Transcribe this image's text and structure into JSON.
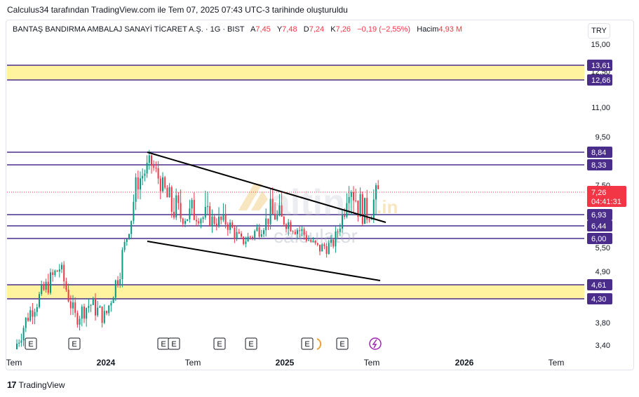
{
  "caption": "Calculus34 tarafından TradingView.com ile Tem 07, 2025 07:43 UTC-3 tarihinde oluşturuldu",
  "legend": {
    "symbol": "BANTAŞ BANDIRMA AMBALAJ SANAYİ TİCARET A.Ş. · 1G · BIST",
    "open_label": "A",
    "open": "7,45",
    "high_label": "Y",
    "high": "7,48",
    "low_label": "D",
    "low": "7,24",
    "close_label": "K",
    "close": "7,26",
    "change": "−0,19 (−2,55%)",
    "volume_label": "Hacim",
    "volume": "4,93 M"
  },
  "currency": "TRY",
  "watermark": {
    "brand": "altin",
    "suffix": ".in",
    "sub": "calculator"
  },
  "footer": {
    "brand": "TradingView"
  },
  "colors": {
    "purple": "#4a2d8a",
    "yellow": "#fff3a0",
    "up": "#089981",
    "down": "#f23645"
  },
  "chart_data": {
    "type": "candlestick",
    "y_ticks": [
      "15,00",
      "12,50",
      "11,00",
      "9,50",
      "7,50",
      "5,50",
      "4,90",
      "3,80",
      "3,40"
    ],
    "x_ticks": [
      "Tem",
      "2024",
      "Tem",
      "2025",
      "Tem",
      "2026",
      "Tem"
    ],
    "price_levels": [
      "13,61",
      "12,66",
      "8,84",
      "8,33",
      "6,93",
      "6,44",
      "6,00",
      "4,61",
      "4,30"
    ],
    "zones": [
      [
        "13,61",
        "12,66"
      ],
      [
        "4,61",
        "4,30"
      ]
    ],
    "current_price": "7,26",
    "countdown": "04:41:31",
    "event_markers": [
      "E",
      "E",
      "E",
      "E",
      "E",
      "E",
      "E",
      "E"
    ],
    "series": [
      {
        "x": "2023-07",
        "y": 3.3
      },
      {
        "x": "2023-08",
        "y": 4.0
      },
      {
        "x": "2023-09",
        "y": 4.5
      },
      {
        "x": "2023-10",
        "y": 5.0
      },
      {
        "x": "2023-11",
        "y": 3.9
      },
      {
        "x": "2023-12",
        "y": 4.2
      },
      {
        "x": "2024-01",
        "y": 3.9
      },
      {
        "x": "2024-02",
        "y": 5.0
      },
      {
        "x": "2024-03",
        "y": 7.5
      },
      {
        "x": "2024-04",
        "y": 8.4
      },
      {
        "x": "2024-05",
        "y": 7.2
      },
      {
        "x": "2024-06",
        "y": 6.8
      },
      {
        "x": "2024-07",
        "y": 6.9
      },
      {
        "x": "2024-08",
        "y": 6.7
      },
      {
        "x": "2024-09",
        "y": 6.6
      },
      {
        "x": "2024-10",
        "y": 5.8
      },
      {
        "x": "2024-11",
        "y": 6.3
      },
      {
        "x": "2024-12",
        "y": 6.9
      },
      {
        "x": "2025-01",
        "y": 6.6
      },
      {
        "x": "2025-02",
        "y": 6.2
      },
      {
        "x": "2025-03",
        "y": 5.5
      },
      {
        "x": "2025-04",
        "y": 5.7
      },
      {
        "x": "2025-05",
        "y": 7.6
      },
      {
        "x": "2025-06",
        "y": 6.8
      },
      {
        "x": "2025-07",
        "y": 7.26
      }
    ]
  }
}
